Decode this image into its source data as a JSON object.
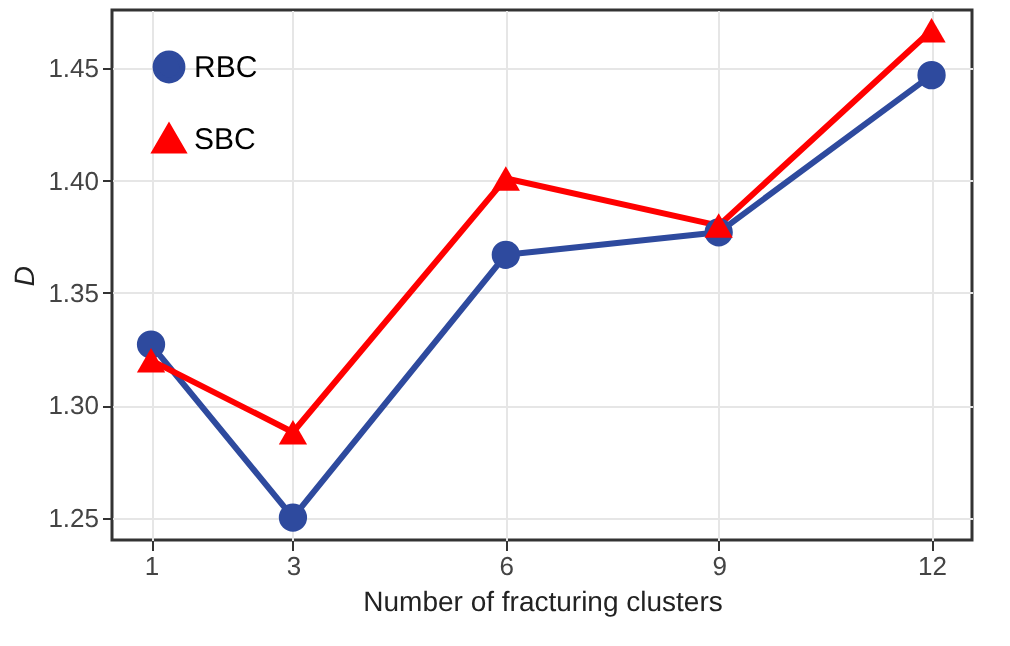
{
  "chart_data": {
    "type": "line",
    "xlabel": "Number of fracturing clusters",
    "ylabel": "D",
    "x": [
      1,
      3,
      6,
      9,
      12
    ],
    "series": [
      {
        "name": "RBC",
        "color": "#2e4a9e",
        "marker": "circle",
        "values": [
          1.327,
          1.25,
          1.367,
          1.377,
          1.447
        ]
      },
      {
        "name": "SBC",
        "color": "#ff0000",
        "marker": "triangle",
        "values": [
          1.32,
          1.288,
          1.401,
          1.38,
          1.467
        ]
      }
    ],
    "xlim": [
      0.45,
      12.57
    ],
    "xticks": [
      1,
      3,
      6,
      9,
      12
    ],
    "ylim": [
      1.24,
      1.476
    ],
    "yticks": [
      1.25,
      {
        "value": 1.3,
        "label": "1.30"
      },
      1.35,
      {
        "value": 1.4,
        "label": "1.40"
      },
      1.45
    ],
    "grid": true,
    "legend": "top left",
    "line_style": "solid"
  }
}
